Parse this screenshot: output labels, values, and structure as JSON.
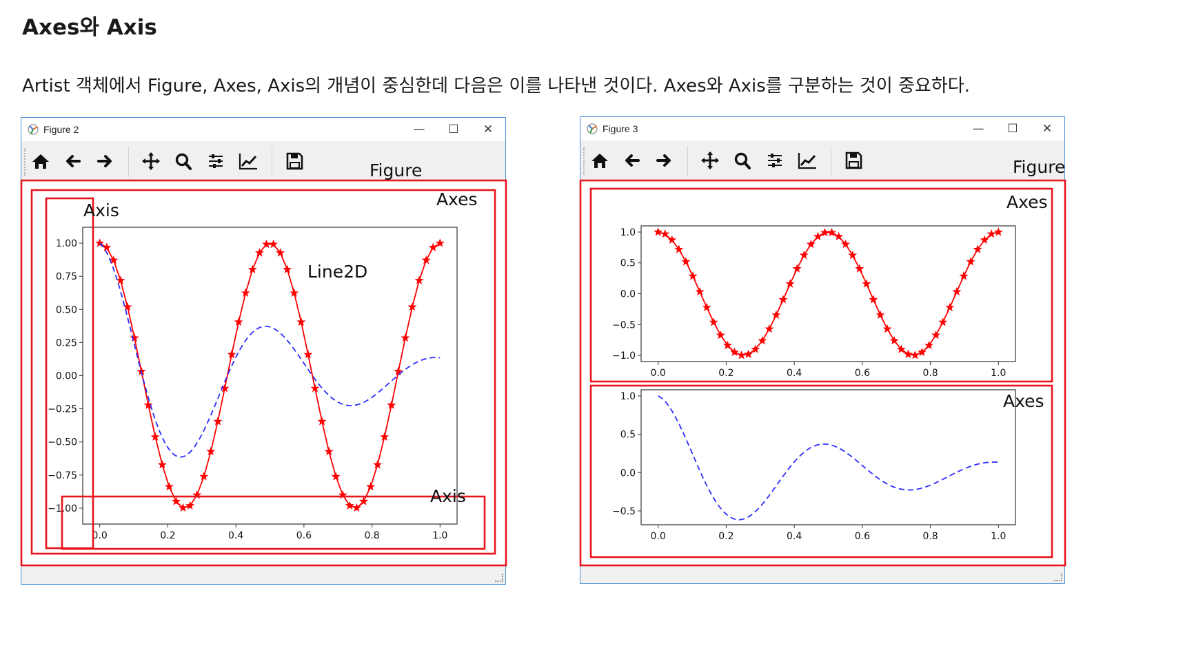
{
  "page": {
    "heading": "Axes와 Axis",
    "paragraph": "Artist 객체에서 Figure, Axes, Axis의 개념이 중심한데 다음은 이를 나타낸 것이다. Axes와 Axis를 구분하는 것이 중요하다."
  },
  "colors": {
    "highlight": "#e8141c",
    "series_red": "#ff0000",
    "series_blue": "#2b2bff",
    "window_border": "#4a90d9"
  },
  "windows": [
    {
      "title": "Figure 2",
      "controls": {
        "minimize": "—",
        "maximize": "☐",
        "close": "✕"
      },
      "toolbar_icons": [
        "home-icon",
        "back-arrow-icon",
        "forward-arrow-icon",
        "pan-icon",
        "zoom-icon",
        "subplots-config-icon",
        "edit-axes-icon",
        "save-icon"
      ],
      "annotations": {
        "figure": "Figure",
        "axes": "Axes",
        "axis_y": "Axis",
        "axis_x": "Axis",
        "line2d": "Line2D"
      }
    },
    {
      "title": "Figure 3",
      "controls": {
        "minimize": "—",
        "maximize": "☐",
        "close": "✕"
      },
      "toolbar_icons": [
        "home-icon",
        "back-arrow-icon",
        "forward-arrow-icon",
        "pan-icon",
        "zoom-icon",
        "subplots-config-icon",
        "edit-axes-icon",
        "save-icon"
      ],
      "annotations": {
        "figure": "Figure",
        "axes_top": "Axes",
        "axes_bottom": "Axes"
      }
    }
  ],
  "chart_data": [
    {
      "type": "line",
      "figure": "Figure 2",
      "title": "",
      "xlabel": "",
      "ylabel": "",
      "xlim": [
        -0.05,
        1.05
      ],
      "ylim": [
        -1.12,
        1.12
      ],
      "xticks": [
        "0.0",
        "0.2",
        "0.4",
        "0.6",
        "0.8",
        "1.0"
      ],
      "yticks": [
        "−1.00",
        "−0.75",
        "−0.50",
        "−0.25",
        "0.00",
        "0.25",
        "0.50",
        "0.75",
        "1.00"
      ],
      "grid": false,
      "series": [
        {
          "style": "red solid line with star markers",
          "color": "#ff0000",
          "formula": "cos(4·π·x)",
          "x_range": [
            0,
            1
          ],
          "n_points": 50
        },
        {
          "style": "blue dashed line",
          "color": "#2b2bff",
          "formula": "exp(−2x)·cos(4·π·x)",
          "x_range": [
            0,
            1
          ],
          "n_points": 200
        }
      ]
    },
    {
      "type": "line",
      "figure": "Figure 3 (top subplot)",
      "title": "",
      "xlabel": "",
      "ylabel": "",
      "xlim": [
        -0.05,
        1.05
      ],
      "ylim": [
        -1.1,
        1.1
      ],
      "xticks": [
        "0.0",
        "0.2",
        "0.4",
        "0.6",
        "0.8",
        "1.0"
      ],
      "yticks": [
        "−1.0",
        "−0.5",
        "0.0",
        "0.5",
        "1.0"
      ],
      "grid": false,
      "series": [
        {
          "style": "red solid line with star markers",
          "color": "#ff0000",
          "formula": "cos(4·π·x)",
          "x_range": [
            0,
            1
          ],
          "n_points": 50
        }
      ]
    },
    {
      "type": "line",
      "figure": "Figure 3 (bottom subplot)",
      "title": "",
      "xlabel": "",
      "ylabel": "",
      "xlim": [
        -0.05,
        1.05
      ],
      "ylim": [
        -0.68,
        1.08
      ],
      "xticks": [
        "0.0",
        "0.2",
        "0.4",
        "0.6",
        "0.8",
        "1.0"
      ],
      "yticks": [
        "−0.5",
        "0.0",
        "0.5",
        "1.0"
      ],
      "grid": false,
      "series": [
        {
          "style": "blue dashed line",
          "color": "#2b2bff",
          "formula": "exp(−2x)·cos(4·π·x)",
          "x_range": [
            0,
            1
          ],
          "n_points": 200
        }
      ]
    }
  ]
}
